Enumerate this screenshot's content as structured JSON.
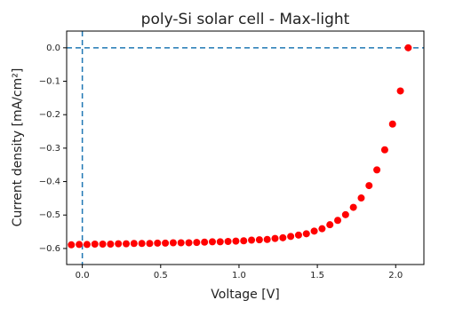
{
  "chart_data": {
    "type": "scatter",
    "title": "poly-Si solar cell - Max-light",
    "x_label": "Voltage [V]",
    "y_label": "Current density  [mA/cm²]",
    "xlim": [
      -0.1,
      2.18
    ],
    "ylim": [
      -0.648,
      0.05
    ],
    "xticks": [
      {
        "value": 0,
        "label": "0.0"
      },
      0.5,
      {
        "value": 1,
        "label": "1.0"
      },
      1.5,
      {
        "value": 2,
        "label": "2.0"
      }
    ],
    "yticks": [
      {
        "value": 0,
        "label": "0.0"
      },
      {
        "value": -0.1,
        "label": "−0.1"
      },
      {
        "value": -0.2,
        "label": "−0.2"
      },
      {
        "value": -0.3,
        "label": "−0.3"
      },
      {
        "value": -0.4,
        "label": "−0.4"
      },
      {
        "value": -0.5,
        "label": "−0.5"
      },
      {
        "value": -0.6,
        "label": "−0.6"
      }
    ],
    "reference_lines": {
      "x": 0,
      "y": 0,
      "color": "#1f77b4",
      "dashed": true
    },
    "series": [
      {
        "color": "#ff0000",
        "x": [
          -0.07,
          -0.02,
          0.03,
          0.08,
          0.13,
          0.18,
          0.23,
          0.28,
          0.33,
          0.38,
          0.43,
          0.48,
          0.53,
          0.58,
          0.63,
          0.68,
          0.73,
          0.78,
          0.83,
          0.88,
          0.93,
          0.98,
          1.03,
          1.08,
          1.13,
          1.18,
          1.23,
          1.28,
          1.33,
          1.38,
          1.43,
          1.48,
          1.53,
          1.58,
          1.63,
          1.68,
          1.73,
          1.78,
          1.83,
          1.88,
          1.93,
          1.98,
          2.03,
          2.08
        ],
        "values": [
          -0.589,
          -0.588,
          -0.588,
          -0.587,
          -0.587,
          -0.587,
          -0.586,
          -0.586,
          -0.585,
          -0.585,
          -0.585,
          -0.584,
          -0.584,
          -0.583,
          -0.583,
          -0.583,
          -0.582,
          -0.581,
          -0.58,
          -0.58,
          -0.579,
          -0.578,
          -0.577,
          -0.575,
          -0.574,
          -0.573,
          -0.57,
          -0.568,
          -0.564,
          -0.56,
          -0.556,
          -0.548,
          -0.541,
          -0.529,
          -0.516,
          -0.499,
          -0.477,
          -0.449,
          -0.412,
          -0.365,
          -0.305,
          -0.228,
          -0.129,
          0
        ]
      }
    ]
  }
}
